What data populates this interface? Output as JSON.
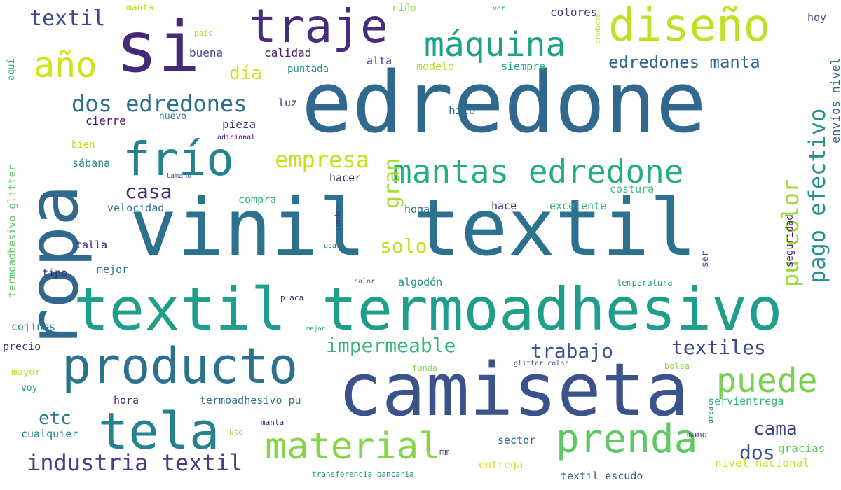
{
  "words": [
    {
      "text": "edredone",
      "color": "#31688e"
    },
    {
      "text": "vinil textil",
      "color": "#2c728e"
    },
    {
      "text": "camiseta",
      "color": "#3b528b"
    },
    {
      "text": "textil termoadhesivo",
      "color": "#1f9e89"
    },
    {
      "text": "si",
      "color": "#482878"
    },
    {
      "text": "ropa",
      "color": "#31688e"
    },
    {
      "text": "producto",
      "color": "#2c728e"
    },
    {
      "text": "tela",
      "color": "#26828e"
    },
    {
      "text": "traje",
      "color": "#472d7b"
    },
    {
      "text": "diseño",
      "color": "#c2df23"
    },
    {
      "text": "frío",
      "color": "#26828e"
    },
    {
      "text": "mantas edredone",
      "color": "#25ac82"
    },
    {
      "text": "máquina",
      "color": "#1fa188"
    },
    {
      "text": "prenda",
      "color": "#5ec962"
    },
    {
      "text": "material",
      "color": "#86d549"
    },
    {
      "text": "año",
      "color": "#d2e21b"
    },
    {
      "text": "puede",
      "color": "#7ad151"
    },
    {
      "text": "industria textil",
      "color": "#433e85"
    },
    {
      "text": "dos edredones",
      "color": "#2c728e"
    },
    {
      "text": "textil",
      "color": "#3e4989"
    },
    {
      "text": "impermeable",
      "color": "#35b779"
    },
    {
      "text": "trabajo",
      "color": "#39558c"
    },
    {
      "text": "textiles",
      "color": "#3f4788"
    },
    {
      "text": "empresa",
      "color": "#c8e020"
    },
    {
      "text": "pago efectivo",
      "color": "#21918c"
    },
    {
      "text": "pu color",
      "color": "#9dd93b"
    },
    {
      "text": "gran",
      "color": "#a8db34"
    },
    {
      "text": "edredones manta",
      "color": "#31688e"
    },
    {
      "text": "casa",
      "color": "#472c7a"
    },
    {
      "text": "solo",
      "color": "#c0df25"
    },
    {
      "text": "cama",
      "color": "#404688"
    },
    {
      "text": "dos",
      "color": "#3a548c"
    },
    {
      "text": "etc",
      "color": "#2a768e"
    },
    {
      "text": "día",
      "color": "#d5e21a"
    },
    {
      "text": "termoadhesivo glitter",
      "color": "#5ec962"
    },
    {
      "text": "envíos nivel",
      "color": "#31688e"
    },
    {
      "text": "seguridad",
      "color": "#481a6c"
    },
    {
      "text": "manta",
      "color": "#bddf26"
    },
    {
      "text": "niño",
      "color": "#a0da39"
    },
    {
      "text": "ver",
      "color": "#1fa188"
    },
    {
      "text": "colores",
      "color": "#472f7d"
    },
    {
      "text": "hoy",
      "color": "#3f4889"
    },
    {
      "text": "país",
      "color": "#b5de2b"
    },
    {
      "text": "buena",
      "color": "#3e4a89"
    },
    {
      "text": "calidad",
      "color": "#481a6c"
    },
    {
      "text": "alta",
      "color": "#414287"
    },
    {
      "text": "modelo",
      "color": "#b8de29"
    },
    {
      "text": "siempre",
      "color": "#22a785"
    },
    {
      "text": "puntada",
      "color": "#218f8d"
    },
    {
      "text": "aquí",
      "color": "#2db27d"
    },
    {
      "text": "luz",
      "color": "#46337e"
    },
    {
      "text": "hilo",
      "color": "#2a788e"
    },
    {
      "text": "cierre",
      "color": "#481b6d"
    },
    {
      "text": "nuevo",
      "color": "#287d8e"
    },
    {
      "text": "pieza",
      "color": "#46327e"
    },
    {
      "text": "adicional",
      "color": "#46085c"
    },
    {
      "text": "bien",
      "color": "#bade28"
    },
    {
      "text": "sábana",
      "color": "#25848e"
    },
    {
      "text": "tamaño",
      "color": "#375b8d"
    },
    {
      "text": "hacer",
      "color": "#472a7a"
    },
    {
      "text": "costura",
      "color": "#3bbb75"
    },
    {
      "text": "velocidad",
      "color": "#2c728e"
    },
    {
      "text": "compra",
      "color": "#24aa83"
    },
    {
      "text": "hogar",
      "color": "#2c718e"
    },
    {
      "text": "hace",
      "color": "#472d7b"
    },
    {
      "text": "excelente",
      "color": "#2fb47c"
    },
    {
      "text": "talla",
      "color": "#482475"
    },
    {
      "text": "usar",
      "color": "#2d718e"
    },
    {
      "text": "tipo",
      "color": "#482071"
    },
    {
      "text": "mejor",
      "color": "#2e6e8e"
    },
    {
      "text": "algodón",
      "color": "#21918c"
    },
    {
      "text": "temperatura",
      "color": "#1f9a8a"
    },
    {
      "text": "placa",
      "color": "#482878"
    },
    {
      "text": "cojines",
      "color": "#26828e"
    },
    {
      "text": "precio",
      "color": "#46307e"
    },
    {
      "text": "mayor",
      "color": "#bddf26"
    },
    {
      "text": "funda",
      "color": "#84d44b"
    },
    {
      "text": "glitter color",
      "color": "#3e4c8a"
    },
    {
      "text": "bolsa",
      "color": "#90d743"
    },
    {
      "text": "voy",
      "color": "#20a486"
    },
    {
      "text": "hora",
      "color": "#472a7a"
    },
    {
      "text": "termoadhesivo pu",
      "color": "#2a788e"
    },
    {
      "text": "servientrega",
      "color": "#35b779"
    },
    {
      "text": "cualquier",
      "color": "#25848e"
    },
    {
      "text": "uso",
      "color": "#90d743"
    },
    {
      "text": "manta",
      "color": "#482173"
    },
    {
      "text": "sector",
      "color": "#2c718e"
    },
    {
      "text": "mano",
      "color": "#404688"
    },
    {
      "text": "gracias",
      "color": "#5ec962"
    },
    {
      "text": "mm",
      "color": "#453581"
    },
    {
      "text": "entrega",
      "color": "#d8e219"
    },
    {
      "text": "nivel nacional",
      "color": "#cde11d"
    },
    {
      "text": "transferencia bancaria",
      "color": "#21918c"
    },
    {
      "text": "textil escudo",
      "color": "#38588c"
    },
    {
      "text": "pueden",
      "color": "#46327e"
    },
    {
      "text": "área",
      "color": "#2c718e"
    },
    {
      "text": "calor",
      "color": "#29798e"
    },
    {
      "text": "producto",
      "color": "#bddf26"
    },
    {
      "text": "mejor",
      "color": "#22a785"
    },
    {
      "text": "ser",
      "color": "#3e4c8a"
    }
  ]
}
